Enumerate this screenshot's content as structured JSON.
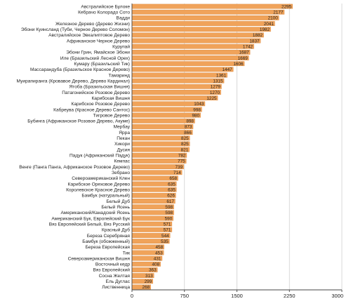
{
  "chart_data": {
    "type": "bar",
    "orientation": "horizontal",
    "categories": [
      "Австралийское Булоке",
      "Кебрачо Колорадо Сото",
      "Вадди",
      "Железное Дерево (Дерево Жизни)",
      "Эбони Куинсланд (Туби, Черное Дерево Соломон)",
      "Австралийское Эвкалиптовое Дерево",
      "Африканское Черное Дерево",
      "Курупай",
      "Эбони Грин, Ямайское Эбони",
      "Иле (Бразильский Лесной Орех)",
      "Кумару (Бразильский Тик)",
      "Массарандуба (Бразильское Красное Дерево)",
      "Тамаринд",
      "Муирапиранга (Кровавое Дерево, Дерево Кардинал)",
      "Ятоба (Бразильская Вишня)",
      "Патагонийское Розовое Дерево",
      "Карибская Вишня",
      "Карибское Розовое Дерево",
      "Кабреува (Красное Дерево Сантос)",
      "Тигровое Дерево",
      "Бубинга (Африканское Розовое Дерево, Акуме)",
      "Мербау",
      "Ярра",
      "Пекан",
      "Хикори",
      "Дусия",
      "Падук (Африканский Падук)",
      "Кемпас",
      "Венге (Панга Панга, Африканское Розовое Дерево)",
      "Зебрано",
      "Североамериканский Клен",
      "Карибское Ореховое Дерево",
      "Королевское Красное Дерево",
      "Бамбук (натуральный)",
      "Белый Дуб",
      "Белый Ясень",
      "Американский/Канадский Ясень",
      "Американский Бук, Европейский Бук",
      "Вяз Европейский Белый, Вяз Русский",
      "Красный Дуб",
      "Береза Серебряная",
      "Бамбук (обожженный)",
      "Береза Европейская",
      "Тик",
      "Североамериканская Вишня",
      "Восточный кедр",
      "Вяз Европейский",
      "Сосна Желтая",
      "Ель Дуглас",
      "Лиственница"
    ],
    "values": [
      2295,
      2177,
      2100,
      2041,
      1982,
      1882,
      1837,
      1742,
      1687,
      1669,
      1606,
      1447,
      1361,
      1315,
      1279,
      1270,
      1225,
      1043,
      998,
      980,
      898,
      873,
      866,
      825,
      825,
      821,
      782,
      775,
      739,
      714,
      658,
      635,
      635,
      626,
      617,
      598,
      598,
      590,
      571,
      571,
      544,
      535,
      458,
      453,
      431,
      408,
      363,
      313,
      299,
      268
    ],
    "xlim": [
      0,
      3000
    ],
    "xticks": [
      "0",
      "750",
      "1500",
      "2250",
      "3000"
    ],
    "title": "",
    "xlabel": "",
    "ylabel": "",
    "grid": true,
    "legend": "none",
    "colors": {
      "bar": "#f0a35a",
      "bar_edge": "#d9863a",
      "grid": "#cfcfcf",
      "axis": "#444444",
      "text": "#222222"
    }
  }
}
